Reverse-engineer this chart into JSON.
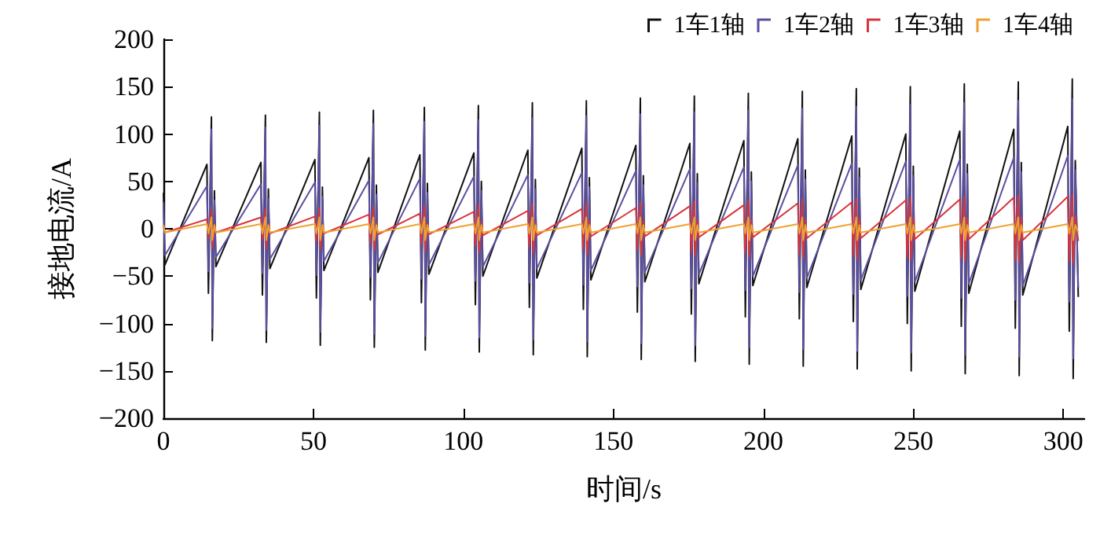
{
  "chart_data": {
    "type": "line",
    "xlabel": "时间/s",
    "ylabel": "接地电流/A",
    "xlim": [
      0,
      307
    ],
    "xticks": [
      0,
      50,
      100,
      150,
      200,
      250,
      300
    ],
    "ylim": [
      -200,
      200
    ],
    "yticks": [
      -200,
      -150,
      -100,
      -50,
      0,
      50,
      100,
      150,
      200
    ],
    "grid": false,
    "legend": "top right",
    "marker": "none",
    "line_style": "solid",
    "x": [
      0,
      0.5,
      14.5,
      15,
      16,
      16.3,
      17,
      17.5,
      32.5,
      33,
      34,
      34.3,
      35,
      35.5,
      50.5,
      51,
      52,
      52.3,
      53,
      53.5,
      68.5,
      69,
      70,
      70.3,
      71,
      71.5,
      85.5,
      86,
      87,
      87.3,
      88,
      88.5,
      103.5,
      104,
      105,
      105.3,
      106,
      106.5,
      121.5,
      122,
      123,
      123.3,
      124,
      124.5,
      139.5,
      140,
      141,
      141.3,
      142,
      142.5,
      157.5,
      158,
      159,
      159.3,
      160,
      160.5,
      175.5,
      176,
      177,
      177.3,
      178,
      178.5,
      193.5,
      194,
      195,
      195.3,
      196,
      196.5,
      211.5,
      212,
      213,
      213.3,
      214,
      214.5,
      229.5,
      230,
      231,
      231.3,
      232,
      232.5,
      247.5,
      248,
      249,
      249.3,
      250,
      250.5,
      265.5,
      266,
      267,
      267.3,
      268,
      268.5,
      283.5,
      284,
      285,
      285.3,
      286,
      286.5,
      301.5,
      302,
      303,
      303.3,
      304,
      305
    ],
    "series": [
      {
        "name": "1车1轴",
        "color": "#111111",
        "values": [
          38,
          -38,
          68,
          -68,
          118,
          -118,
          40,
          -40,
          70,
          -70,
          120,
          -120,
          42,
          -42,
          73,
          -73,
          123,
          -123,
          44,
          -44,
          75,
          -75,
          125,
          -125,
          46,
          -46,
          78,
          -78,
          128,
          -128,
          48,
          -48,
          80,
          -80,
          130,
          -130,
          50,
          -50,
          83,
          -83,
          133,
          -133,
          52,
          -52,
          85,
          -85,
          135,
          -135,
          54,
          -54,
          88,
          -88,
          138,
          -138,
          56,
          -56,
          90,
          -90,
          140,
          -140,
          58,
          -58,
          93,
          -93,
          143,
          -143,
          60,
          -60,
          95,
          -95,
          145,
          -145,
          62,
          -62,
          98,
          -98,
          148,
          -148,
          64,
          -64,
          100,
          -100,
          150,
          -150,
          66,
          -66,
          103,
          -103,
          153,
          -153,
          68,
          -68,
          105,
          -105,
          155,
          -155,
          70,
          -70,
          108,
          -108,
          158,
          -158,
          72,
          -72
        ]
      },
      {
        "name": "1车2轴",
        "color": "#5a4fa0",
        "values": [
          28,
          -28,
          45,
          -45,
          105,
          -105,
          30,
          -30,
          47,
          -47,
          107,
          -107,
          32,
          -32,
          49,
          -49,
          109,
          -109,
          34,
          -34,
          51,
          -51,
          111,
          -111,
          36,
          -36,
          53,
          -53,
          113,
          -113,
          38,
          -38,
          55,
          -55,
          115,
          -115,
          40,
          -40,
          57,
          -57,
          117,
          -117,
          42,
          -42,
          59,
          -59,
          119,
          -119,
          44,
          -44,
          61,
          -61,
          121,
          -121,
          46,
          -46,
          63,
          -63,
          123,
          -123,
          48,
          -48,
          65,
          -65,
          125,
          -125,
          50,
          -50,
          67,
          -67,
          127,
          -127,
          52,
          -52,
          69,
          -69,
          129,
          -129,
          54,
          -54,
          71,
          -71,
          131,
          -131,
          56,
          -56,
          73,
          -73,
          133,
          -133,
          58,
          -58,
          75,
          -75,
          135,
          -135,
          60,
          -60,
          77,
          -77,
          137,
          -137,
          62,
          -62
        ]
      },
      {
        "name": "1车3轴",
        "color": "#d8343c",
        "values": [
          4,
          -4,
          10,
          -10,
          20,
          -20,
          4,
          -4,
          12,
          -12,
          21,
          -21,
          5,
          -5,
          13,
          -13,
          22,
          -22,
          5,
          -5,
          15,
          -15,
          23,
          -23,
          6,
          -6,
          16,
          -16,
          24,
          -24,
          6,
          -6,
          18,
          -18,
          25,
          -25,
          7,
          -7,
          19,
          -19,
          26,
          -26,
          7,
          -7,
          21,
          -21,
          27,
          -27,
          8,
          -8,
          22,
          -22,
          28,
          -28,
          8,
          -8,
          24,
          -24,
          29,
          -29,
          9,
          -9,
          25,
          -25,
          30,
          -30,
          9,
          -9,
          27,
          -27,
          31,
          -31,
          10,
          -10,
          28,
          -28,
          32,
          -32,
          10,
          -10,
          30,
          -30,
          33,
          -33,
          11,
          -11,
          31,
          -31,
          34,
          -34,
          11,
          -11,
          33,
          -33,
          35,
          -35,
          12,
          -12,
          34,
          -34,
          36,
          -36,
          13,
          -13
        ]
      },
      {
        "name": "1车4轴",
        "color": "#f0a030",
        "values": [
          4,
          -4,
          5,
          -5,
          12,
          -12,
          4,
          -4,
          5,
          -5,
          12,
          -12,
          4,
          -4,
          5,
          -5,
          12,
          -12,
          4,
          -4,
          5,
          -5,
          12,
          -12,
          4,
          -4,
          5,
          -5,
          12,
          -12,
          4,
          -4,
          5,
          -5,
          12,
          -12,
          4,
          -4,
          5,
          -5,
          12,
          -12,
          4,
          -4,
          5,
          -5,
          12,
          -12,
          4,
          -4,
          5,
          -5,
          12,
          -12,
          4,
          -4,
          5,
          -5,
          12,
          -12,
          4,
          -4,
          5,
          -5,
          12,
          -12,
          4,
          -4,
          5,
          -5,
          12,
          -12,
          4,
          -4,
          5,
          -5,
          12,
          -12,
          4,
          -4,
          5,
          -5,
          12,
          -12,
          4,
          -4,
          5,
          -5,
          12,
          -12,
          4,
          -4,
          5,
          -5,
          12,
          -12,
          4,
          -4,
          5,
          -5,
          12,
          -12,
          4,
          -4
        ]
      }
    ]
  }
}
